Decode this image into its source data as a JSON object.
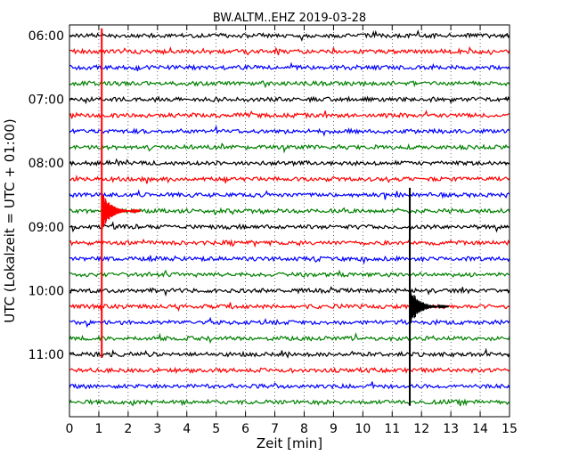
{
  "chart_data": {
    "type": "line",
    "title": "BW.ALTM..EHZ 2019-03-28",
    "xlabel": "Zeit  [min]",
    "ylabel": "UTC (Lokalzeit = UTC + 01:00)",
    "xlim": [
      0,
      15
    ],
    "x_ticks": [
      "0",
      "1",
      "2",
      "3",
      "4",
      "5",
      "6",
      "7",
      "8",
      "9",
      "10",
      "11",
      "12",
      "13",
      "14",
      "15"
    ],
    "y_ticks": [
      "06:00",
      "07:00",
      "08:00",
      "09:00",
      "10:00",
      "11:00"
    ],
    "start_time": "06:00",
    "minutes_per_line": 15,
    "line_count": 24,
    "line_colors": [
      "#000000",
      "#ff0000",
      "#0000ff",
      "#008000"
    ],
    "grid": "vertical dotted",
    "events": [
      {
        "start_line": 1,
        "end_line": 20,
        "time_min": 1.1,
        "color": "#ff0000",
        "label": ""
      },
      {
        "start_line": 11,
        "end_line": 23,
        "time_min": 11.6,
        "color": "#000000",
        "label": ""
      }
    ]
  }
}
